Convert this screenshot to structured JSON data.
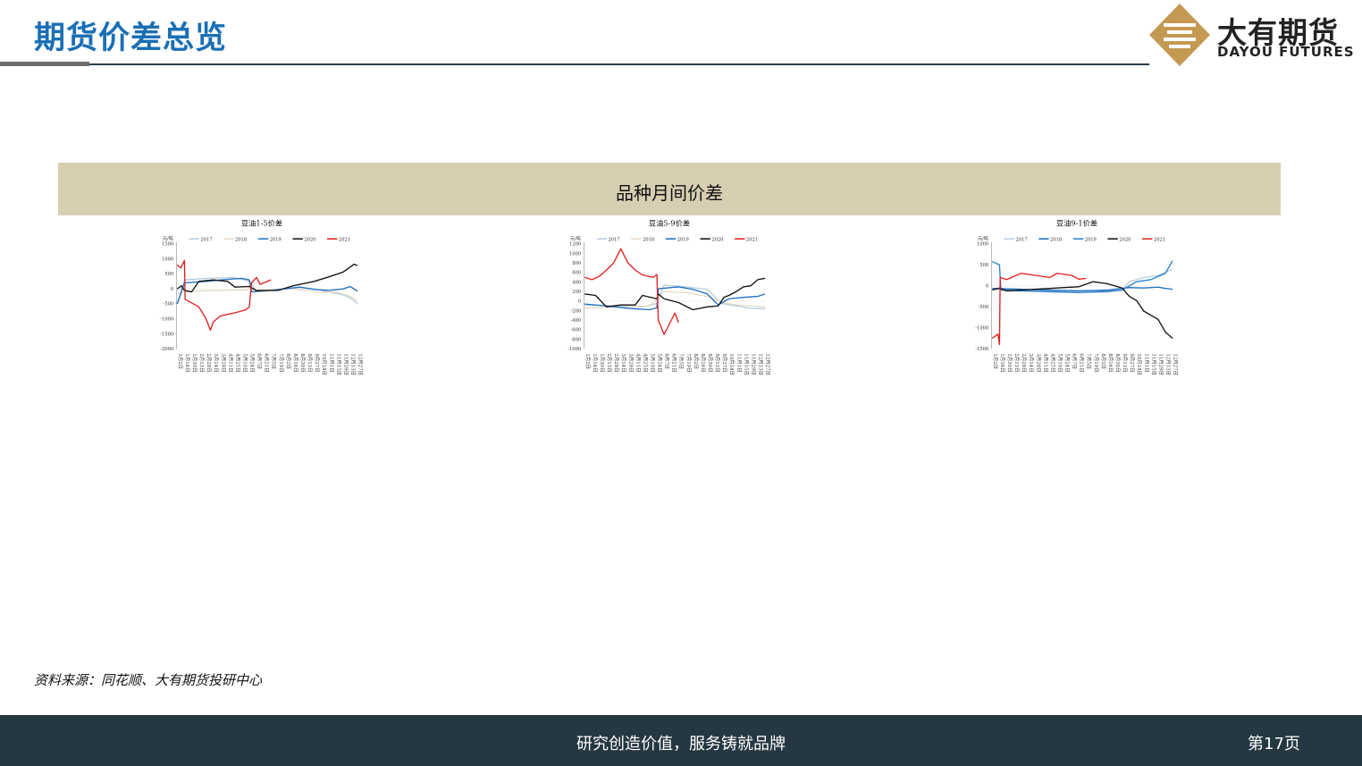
{
  "header": {
    "title": "期货价差总览"
  },
  "logo": {
    "cn": "大有期货",
    "en": "DAYOU FUTURES"
  },
  "panel": {
    "title": "品种月间价差"
  },
  "colors": {
    "s2017": "#b8cde0",
    "s2018": "#e4dccb",
    "s2019": "#1f6fc0",
    "s2020": "#111111",
    "s2021": "#e02020",
    "s2018_blue": "#1f6fc0"
  },
  "chart_data": [
    {
      "type": "line",
      "title": "豆油1-5价差",
      "ylabel": "元/吨",
      "ylim": [
        -2000,
        1500
      ],
      "yticks": [
        1500,
        1000,
        500,
        0,
        -500,
        -1000,
        -1500,
        -2000
      ],
      "xtick_labels": [
        "1月2日",
        "1月16日",
        "1月30日",
        "2月13日",
        "2月28日",
        "3月14日",
        "3月28日",
        "4月11日",
        "4月25日",
        "5月10日",
        "5月24日",
        "6月7日",
        "6月21日",
        "7月5日",
        "7月19日",
        "8月2日",
        "8月16日",
        "8月30日",
        "9月13日",
        "9月27日",
        "10月18日",
        "11月1日",
        "11月15日",
        "11月29日",
        "12月13日",
        "12月27日"
      ],
      "series": [
        {
          "name": "2017",
          "color": "#b8cde0",
          "values": [
            [
              0,
              -500
            ],
            [
              1,
              300
            ],
            [
              4,
              350
            ],
            [
              8,
              380
            ],
            [
              10,
              250
            ],
            [
              11,
              -50
            ],
            [
              14,
              -30
            ],
            [
              17,
              50
            ],
            [
              19,
              0
            ],
            [
              21,
              -100
            ],
            [
              23,
              -200
            ],
            [
              24,
              -300
            ],
            [
              25,
              -500
            ]
          ]
        },
        {
          "name": "2018",
          "color": "#e4dccb",
          "values": [
            [
              0,
              -150
            ],
            [
              1,
              -100
            ],
            [
              4,
              -60
            ],
            [
              8,
              -40
            ],
            [
              10,
              -30
            ],
            [
              12,
              -20
            ],
            [
              16,
              0
            ],
            [
              18,
              -60
            ],
            [
              20,
              -120
            ],
            [
              22,
              -100
            ],
            [
              24,
              -250
            ],
            [
              25,
              -400
            ]
          ]
        },
        {
          "name": "2019",
          "color": "#1f6fc0",
          "values": [
            [
              0,
              -500
            ],
            [
              1,
              200
            ],
            [
              4,
              250
            ],
            [
              7,
              320
            ],
            [
              9,
              350
            ],
            [
              10,
              300
            ],
            [
              10.3,
              -100
            ],
            [
              13,
              -50
            ],
            [
              17,
              60
            ],
            [
              19,
              -20
            ],
            [
              21,
              -50
            ],
            [
              23,
              0
            ],
            [
              24,
              80
            ],
            [
              25,
              -80
            ]
          ]
        },
        {
          "name": "2020",
          "color": "#111111",
          "values": [
            [
              0,
              0
            ],
            [
              0.6,
              100
            ],
            [
              1,
              -50
            ],
            [
              2,
              -100
            ],
            [
              3,
              250
            ],
            [
              5,
              300
            ],
            [
              7,
              250
            ],
            [
              8,
              60
            ],
            [
              10,
              80
            ],
            [
              11,
              -60
            ],
            [
              14,
              -50
            ],
            [
              16,
              100
            ],
            [
              19,
              250
            ],
            [
              21,
              400
            ],
            [
              23,
              560
            ],
            [
              24.5,
              820
            ],
            [
              25,
              780
            ]
          ]
        },
        {
          "name": "2021",
          "color": "#e02020",
          "values": [
            [
              0,
              800
            ],
            [
              0.5,
              700
            ],
            [
              1,
              950
            ],
            [
              1.1,
              -350
            ],
            [
              3,
              -600
            ],
            [
              4,
              -1000
            ],
            [
              4.6,
              -1380
            ],
            [
              5,
              -1100
            ],
            [
              6,
              -900
            ],
            [
              8,
              -800
            ],
            [
              9.5,
              -700
            ],
            [
              10,
              -600
            ],
            [
              10.3,
              200
            ],
            [
              11,
              380
            ],
            [
              11.5,
              150
            ],
            [
              13,
              300
            ]
          ]
        }
      ]
    },
    {
      "type": "line",
      "title": "豆油5-9价差",
      "ylabel": "元/吨",
      "ylim": [
        -1000,
        1200
      ],
      "yticks": [
        1200,
        1000,
        800,
        600,
        400,
        200,
        0,
        -200,
        -400,
        -600,
        -800,
        -1000
      ],
      "xtick_labels": [
        "1月2日",
        "1月16日",
        "1月30日",
        "2月13日",
        "2月28日",
        "3月14日",
        "3月28日",
        "4月11日",
        "4月25日",
        "5月10日",
        "5月24日",
        "6月7日",
        "6月21日",
        "7月5日",
        "7月19日",
        "8月2日",
        "8月16日",
        "8月30日",
        "9月13日",
        "9月27日",
        "10月18日",
        "11月1日",
        "11月15日",
        "11月29日",
        "12月13日",
        "12月27日"
      ],
      "series": [
        {
          "name": "2017",
          "color": "#b8cde0",
          "values": [
            [
              0,
              -80
            ],
            [
              4,
              -100
            ],
            [
              8,
              -120
            ],
            [
              10,
              -50
            ],
            [
              11,
              340
            ],
            [
              14,
              300
            ],
            [
              17,
              250
            ],
            [
              18,
              100
            ],
            [
              19,
              -50
            ],
            [
              21,
              -100
            ],
            [
              23,
              -150
            ],
            [
              25,
              -160
            ]
          ]
        },
        {
          "name": "2018",
          "color": "#e4dccb",
          "values": [
            [
              0,
              -150
            ],
            [
              3,
              -130
            ],
            [
              6,
              -120
            ],
            [
              9,
              -100
            ],
            [
              11,
              200
            ],
            [
              14,
              180
            ],
            [
              17,
              100
            ],
            [
              19,
              -20
            ],
            [
              21,
              -80
            ],
            [
              23,
              -100
            ],
            [
              25,
              -120
            ]
          ]
        },
        {
          "name": "2019",
          "color": "#1f6fc0",
          "values": [
            [
              0,
              -60
            ],
            [
              3,
              -100
            ],
            [
              6,
              -150
            ],
            [
              9,
              -180
            ],
            [
              10,
              -140
            ],
            [
              10.2,
              260
            ],
            [
              13,
              300
            ],
            [
              15,
              250
            ],
            [
              17,
              150
            ],
            [
              18.5,
              -80
            ],
            [
              20,
              50
            ],
            [
              22,
              80
            ],
            [
              24,
              100
            ],
            [
              25,
              150
            ]
          ]
        },
        {
          "name": "2020",
          "color": "#111111",
          "values": [
            [
              0,
              150
            ],
            [
              1.5,
              120
            ],
            [
              3,
              -120
            ],
            [
              5,
              -80
            ],
            [
              7,
              -80
            ],
            [
              8,
              120
            ],
            [
              10,
              50
            ],
            [
              10.2,
              150
            ],
            [
              11,
              50
            ],
            [
              13,
              -30
            ],
            [
              15,
              -180
            ],
            [
              17,
              -120
            ],
            [
              18.5,
              -100
            ],
            [
              19.3,
              80
            ],
            [
              20,
              120
            ],
            [
              21,
              200
            ],
            [
              22,
              300
            ],
            [
              23,
              320
            ],
            [
              24,
              450
            ],
            [
              25,
              480
            ]
          ]
        },
        {
          "name": "2021",
          "color": "#e02020",
          "values": [
            [
              0,
              500
            ],
            [
              1,
              450
            ],
            [
              2,
              520
            ],
            [
              3,
              650
            ],
            [
              4,
              800
            ],
            [
              5,
              1100
            ],
            [
              6,
              800
            ],
            [
              7,
              650
            ],
            [
              8,
              550
            ],
            [
              9.5,
              500
            ],
            [
              10,
              560
            ],
            [
              10.2,
              -400
            ],
            [
              11,
              -700
            ],
            [
              12,
              -400
            ],
            [
              12.5,
              -250
            ],
            [
              13,
              -450
            ]
          ]
        }
      ]
    },
    {
      "type": "line",
      "title": "豆油9-1价差",
      "ylabel": "元/吨",
      "ylim": [
        -1500,
        1000
      ],
      "yticks": [
        1000,
        500,
        0,
        -500,
        -1000,
        -1500
      ],
      "xtick_labels": [
        "1月2日",
        "1月16日",
        "1月30日",
        "2月13日",
        "2月28日",
        "3月14日",
        "3月28日",
        "4月11日",
        "4月25日",
        "5月10日",
        "5月24日",
        "6月7日",
        "6月21日",
        "7月5日",
        "7月19日",
        "8月2日",
        "8月16日",
        "8月30日",
        "9月13日",
        "9月27日",
        "10月18日",
        "11月1日",
        "11月15日",
        "11月29日",
        "12月13日",
        "12月27日"
      ],
      "series": [
        {
          "name": "2017",
          "color": "#b8cde0",
          "values": [
            [
              0,
              -80
            ],
            [
              4,
              -100
            ],
            [
              8,
              -130
            ],
            [
              12,
              -150
            ],
            [
              16,
              -150
            ],
            [
              18,
              -100
            ],
            [
              19,
              100
            ],
            [
              21,
              200
            ],
            [
              23,
              250
            ],
            [
              25,
              400
            ]
          ]
        },
        {
          "name": "2018",
          "color": "#1f6fc0",
          "values": [
            [
              0,
              -60
            ],
            [
              4,
              -80
            ],
            [
              8,
              -100
            ],
            [
              12,
              -120
            ],
            [
              16,
              -100
            ],
            [
              18,
              -60
            ],
            [
              19,
              -40
            ],
            [
              21,
              -50
            ],
            [
              23,
              -30
            ],
            [
              24,
              -60
            ],
            [
              25,
              -80
            ]
          ]
        },
        {
          "name": "2019",
          "color": "#2a80d0",
          "values": [
            [
              0,
              580
            ],
            [
              1,
              500
            ],
            [
              1.2,
              -100
            ],
            [
              4,
              -120
            ],
            [
              8,
              -140
            ],
            [
              12,
              -160
            ],
            [
              16,
              -130
            ],
            [
              18,
              -100
            ],
            [
              19,
              0
            ],
            [
              20,
              100
            ],
            [
              22,
              150
            ],
            [
              24,
              300
            ],
            [
              25,
              600
            ]
          ]
        },
        {
          "name": "2020",
          "color": "#111111",
          "values": [
            [
              0,
              -100
            ],
            [
              1,
              -50
            ],
            [
              2,
              -120
            ],
            [
              4,
              -100
            ],
            [
              6,
              -80
            ],
            [
              8,
              -60
            ],
            [
              10,
              -40
            ],
            [
              12,
              -20
            ],
            [
              14,
              100
            ],
            [
              16,
              50
            ],
            [
              18,
              -50
            ],
            [
              19,
              -250
            ],
            [
              20,
              -350
            ],
            [
              21,
              -600
            ],
            [
              22,
              -700
            ],
            [
              23,
              -800
            ],
            [
              24,
              -1100
            ],
            [
              25,
              -1250
            ]
          ]
        },
        {
          "name": "2021",
          "color": "#e02020",
          "values": [
            [
              0,
              -1250
            ],
            [
              0.8,
              -1150
            ],
            [
              1,
              -1400
            ],
            [
              1.1,
              200
            ],
            [
              2,
              150
            ],
            [
              4,
              300
            ],
            [
              6,
              250
            ],
            [
              8,
              200
            ],
            [
              9,
              300
            ],
            [
              11,
              250
            ],
            [
              12,
              160
            ],
            [
              13,
              180
            ]
          ]
        }
      ]
    }
  ],
  "source": "资料来源：同花顺、大有期货投研中心",
  "footer": {
    "slogan": "研究创造价值，服务铸就品牌",
    "page": "第17页"
  }
}
